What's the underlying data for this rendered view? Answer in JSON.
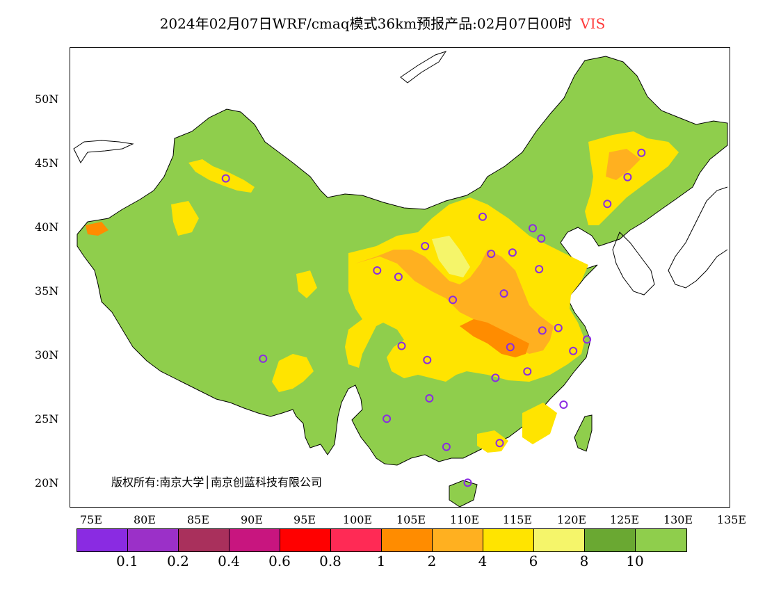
{
  "title": {
    "main": "2024年02月07日WRF/cmaq模式36km预报产品:02月07日00时",
    "variable": "VIS"
  },
  "copyright": "版权所有:南京大学│南京创蓝科技有限公司",
  "axes": {
    "lat_ticks": [
      "50N",
      "45N",
      "40N",
      "35N",
      "30N",
      "25N",
      "20N"
    ],
    "lon_ticks": [
      "75E",
      "80E",
      "85E",
      "90E",
      "95E",
      "100E",
      "105E",
      "110E",
      "115E",
      "120E",
      "125E",
      "130E",
      "135E"
    ]
  },
  "legend": {
    "colors": [
      "#8a2be2",
      "#9b30c8",
      "#a9305c",
      "#c8157f",
      "#ff0000",
      "#ff2a55",
      "#ff8c00",
      "#ffb020",
      "#ffe400",
      "#f5f56a",
      "#6aa832",
      "#8fce4c"
    ],
    "labels": [
      "0.1",
      "0.2",
      "0.4",
      "0.6",
      "0.8",
      "1",
      "2",
      "4",
      "6",
      "8",
      "10"
    ]
  },
  "map": {
    "land_color": "#8fce4c",
    "station_color": "#8a2be2",
    "stations": [
      {
        "lon": 87.6,
        "lat": 43.8
      },
      {
        "lon": 126.6,
        "lat": 45.8
      },
      {
        "lon": 125.3,
        "lat": 43.9
      },
      {
        "lon": 123.4,
        "lat": 41.8
      },
      {
        "lon": 111.7,
        "lat": 40.8
      },
      {
        "lon": 116.4,
        "lat": 39.9
      },
      {
        "lon": 117.2,
        "lat": 39.1
      },
      {
        "lon": 114.5,
        "lat": 38.0
      },
      {
        "lon": 112.5,
        "lat": 37.9
      },
      {
        "lon": 106.3,
        "lat": 38.5
      },
      {
        "lon": 103.8,
        "lat": 36.1
      },
      {
        "lon": 101.8,
        "lat": 36.6
      },
      {
        "lon": 117.0,
        "lat": 36.7
      },
      {
        "lon": 108.9,
        "lat": 34.3
      },
      {
        "lon": 113.7,
        "lat": 34.8
      },
      {
        "lon": 117.3,
        "lat": 31.9
      },
      {
        "lon": 118.8,
        "lat": 32.1
      },
      {
        "lon": 121.5,
        "lat": 31.2
      },
      {
        "lon": 120.2,
        "lat": 30.3
      },
      {
        "lon": 114.3,
        "lat": 30.6
      },
      {
        "lon": 104.1,
        "lat": 30.7
      },
      {
        "lon": 106.5,
        "lat": 29.6
      },
      {
        "lon": 91.1,
        "lat": 29.7
      },
      {
        "lon": 112.9,
        "lat": 28.2
      },
      {
        "lon": 115.9,
        "lat": 28.7
      },
      {
        "lon": 106.7,
        "lat": 26.6
      },
      {
        "lon": 119.3,
        "lat": 26.1
      },
      {
        "lon": 102.7,
        "lat": 25.0
      },
      {
        "lon": 108.3,
        "lat": 22.8
      },
      {
        "lon": 113.3,
        "lat": 23.1
      },
      {
        "lon": 110.3,
        "lat": 20.0
      }
    ]
  }
}
